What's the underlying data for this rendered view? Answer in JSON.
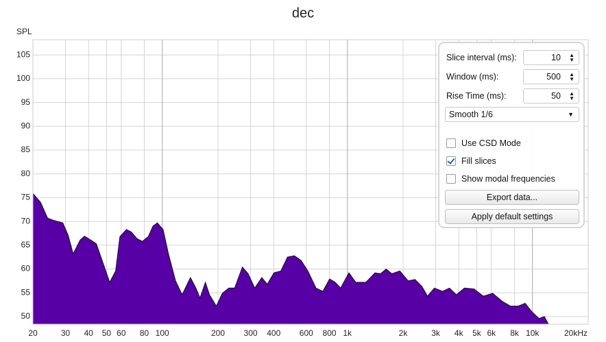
{
  "chart_data": {
    "type": "area",
    "title": "dec",
    "y_label": "SPL",
    "x": [
      20,
      22,
      24,
      26,
      29,
      31,
      33,
      36,
      38,
      41,
      44,
      48,
      52,
      56,
      59,
      64,
      68,
      73,
      78,
      84,
      89,
      94,
      101,
      108,
      118,
      128,
      142,
      152,
      160,
      171,
      180,
      196,
      211,
      229,
      246,
      271,
      291,
      316,
      345,
      369,
      401,
      437,
      475,
      517,
      562,
      611,
      677,
      737,
      802,
      860,
      920,
      1020,
      1110,
      1260,
      1410,
      1510,
      1620,
      1740,
      1920,
      2130,
      2320,
      2530,
      2710,
      2950,
      3270,
      3560,
      3880,
      4290,
      4830,
      5430,
      6100,
      6870,
      7600,
      8380,
      9130,
      9940,
      10850,
      11600,
      12200
    ],
    "values": [
      75.9,
      74,
      70.7,
      70.2,
      69.7,
      67.1,
      63.2,
      66.1,
      66.9,
      66.1,
      65.3,
      61.1,
      57.2,
      59.6,
      66.8,
      68.3,
      67.8,
      66.4,
      65.8,
      66.8,
      69,
      69.7,
      68.3,
      63.2,
      57.5,
      54.6,
      58.2,
      56,
      53.9,
      57.2,
      54.6,
      52.2,
      54.9,
      56,
      56,
      60.4,
      59,
      56,
      58.2,
      56.8,
      59.2,
      59.6,
      62.5,
      62.8,
      61.8,
      59.6,
      56,
      55.3,
      57.9,
      57.2,
      56,
      59.2,
      57.2,
      57.2,
      59.2,
      59,
      60,
      59,
      59.6,
      57.5,
      57.8,
      56.3,
      54.3,
      56,
      55.3,
      56,
      54.6,
      56,
      55.8,
      54.3,
      54.9,
      53.2,
      52.2,
      52.2,
      52.8,
      51,
      49.6,
      50,
      48.4
    ],
    "color": "#5700a6",
    "xscale": "log",
    "grid": true,
    "xlim": [
      20,
      20000
    ],
    "ylim": [
      48.4,
      108.2
    ],
    "xticks": [
      20,
      30,
      40,
      50,
      60,
      80,
      100,
      200,
      300,
      400,
      600,
      800,
      {
        "value": 1000,
        "label": "1k"
      },
      {
        "value": 2000,
        "label": "2k"
      },
      {
        "value": 3000,
        "label": "3k"
      },
      {
        "value": 4000,
        "label": "4k"
      },
      {
        "value": 5000,
        "label": "5k"
      },
      {
        "value": 6000,
        "label": "6k"
      },
      {
        "value": 8000,
        "label": "8k"
      },
      {
        "value": 10000,
        "label": "10k"
      },
      {
        "value": 20000,
        "label": "20kHz"
      }
    ],
    "yticks": [
      50,
      55,
      60,
      65,
      70,
      75,
      80,
      85,
      90,
      95,
      100,
      105
    ]
  },
  "settings_panel": {
    "fields": [
      {
        "label": "Slice interval (ms):",
        "value": 10
      },
      {
        "label": "Window (ms):",
        "value": 500
      },
      {
        "label": "Rise Time (ms):",
        "value": 50
      }
    ],
    "dropdown": "Smooth 1/6",
    "checkboxes": [
      {
        "label": "Use CSD Mode",
        "checked": false
      },
      {
        "label": "Fill slices",
        "checked": true
      },
      {
        "label": "Show modal frequencies",
        "checked": false
      }
    ],
    "buttons": [
      "Export data...",
      "Apply default settings"
    ]
  }
}
